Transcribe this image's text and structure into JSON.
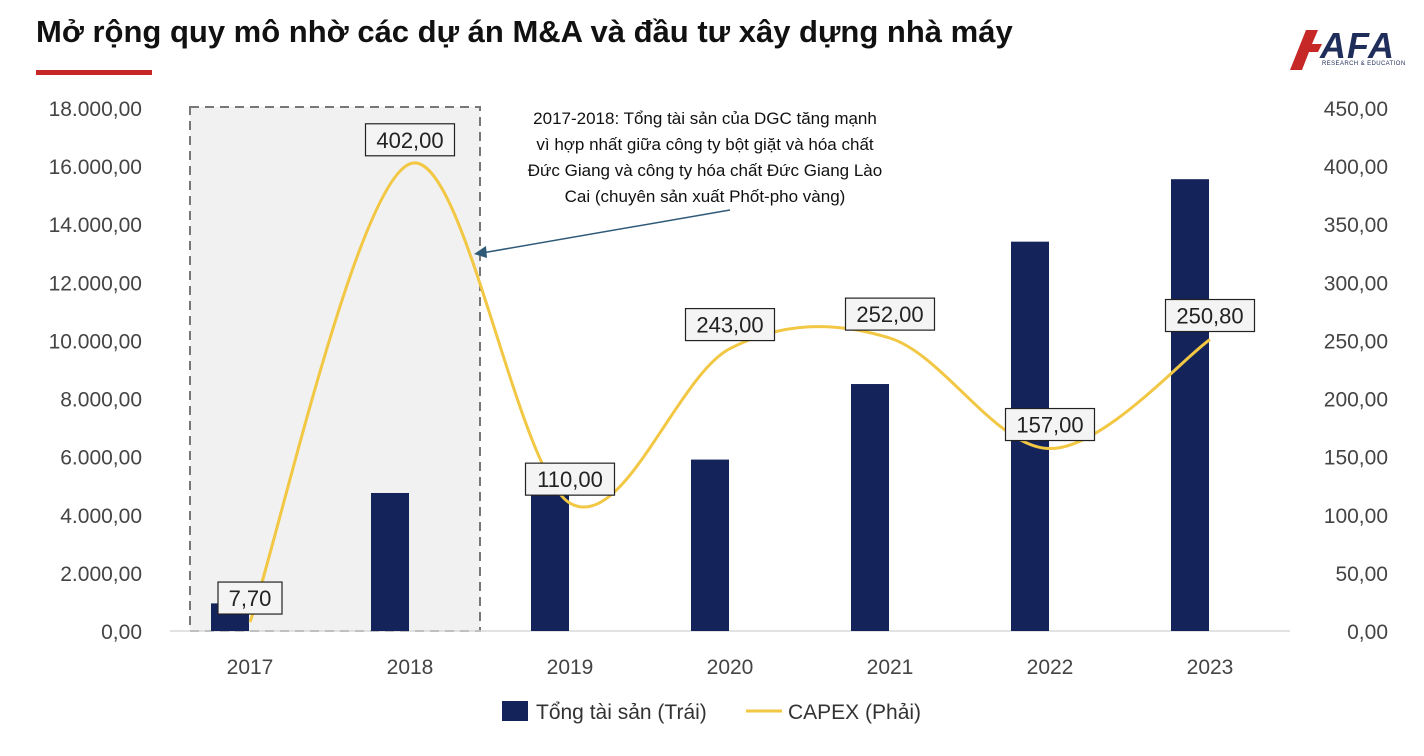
{
  "title": "Mở rộng quy mô nhờ các dự án M&A và đầu tư xây dựng nhà máy",
  "logo": {
    "text": "AFA",
    "subtitle": "RESEARCH & EDUCATION",
    "color": "#c62828"
  },
  "colors": {
    "bar": "#14235a",
    "line": "#f2c744",
    "accent": "#c62828",
    "box_fill": "#f1f1f1",
    "box_border": "#777777"
  },
  "annotation": {
    "lines": [
      "2017-2018: Tổng tài sản của DGC tăng mạnh",
      "vì hợp nhất giữa công ty bột giặt và hóa chất",
      "Đức Giang và công ty hóa chất Đức Giang Lào",
      "Cai (chuyên sản xuất Phốt-pho vàng)"
    ]
  },
  "chart_data": {
    "type": "bar",
    "categories": [
      "2017",
      "2018",
      "2019",
      "2020",
      "2021",
      "2022",
      "2023"
    ],
    "series": [
      {
        "name": "Tổng tài sản (Trái)",
        "type": "bar",
        "axis": "left",
        "values": [
          950,
          4750,
          4800,
          5900,
          8500,
          13400,
          15550
        ]
      },
      {
        "name": "CAPEX (Phải)",
        "type": "line",
        "axis": "right",
        "values": [
          7.7,
          402.0,
          110.0,
          243.0,
          252.0,
          157.0,
          250.8
        ],
        "labels": [
          "7,70",
          "402,00",
          "110,00",
          "243,00",
          "252,00",
          "157,00",
          "250,80"
        ]
      }
    ],
    "y_left": {
      "min": 0,
      "max": 18000,
      "ticks": [
        "0,00",
        "2.000,00",
        "4.000,00",
        "6.000,00",
        "8.000,00",
        "10.000,00",
        "12.000,00",
        "14.000,00",
        "16.000,00",
        "18.000,00"
      ]
    },
    "y_right": {
      "min": 0,
      "max": 450,
      "ticks": [
        "0,00",
        "50,00",
        "100,00",
        "150,00",
        "200,00",
        "250,00",
        "300,00",
        "350,00",
        "400,00",
        "450,00"
      ]
    },
    "grid": false,
    "legend_position": "bottom",
    "highlight_categories": [
      "2017",
      "2018"
    ]
  }
}
